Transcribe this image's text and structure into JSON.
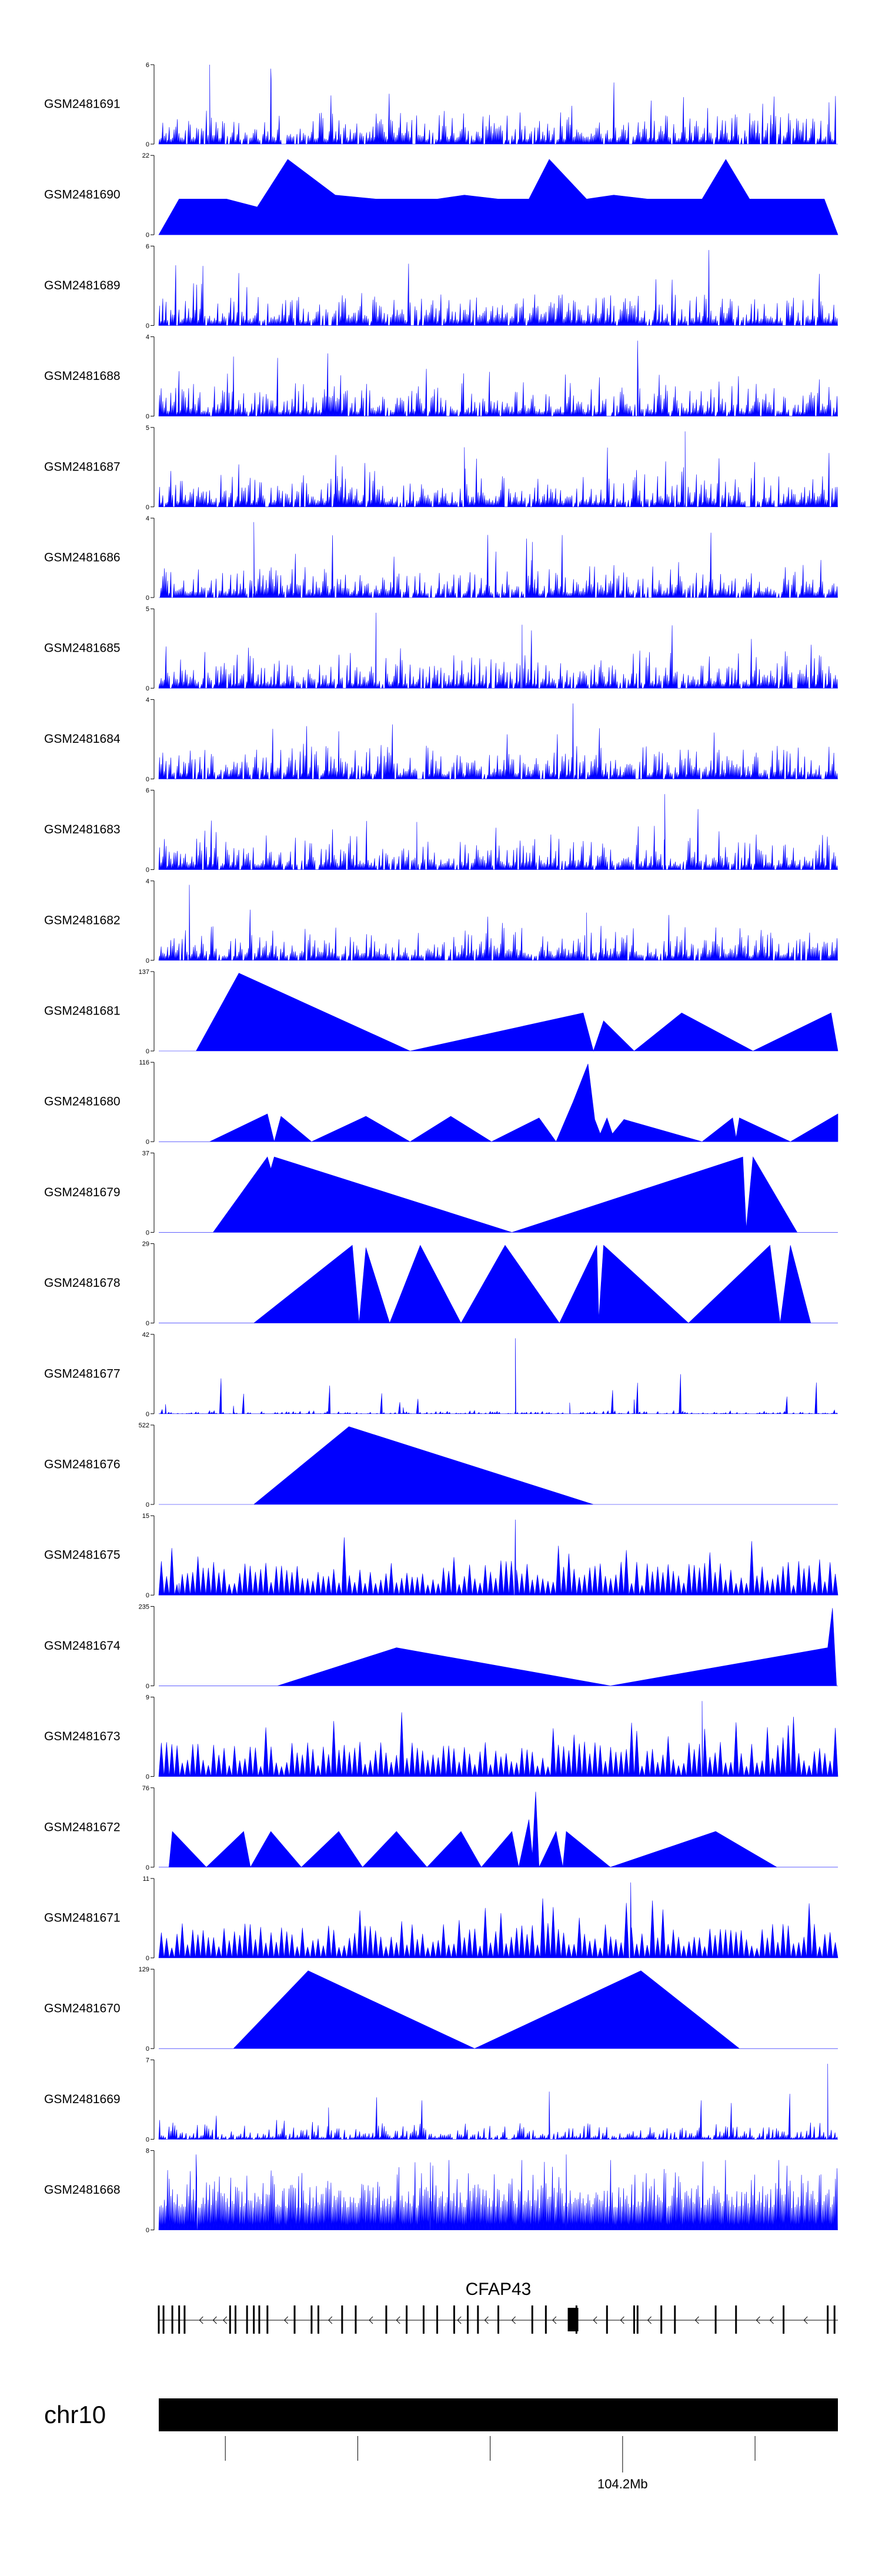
{
  "chart_data": {
    "type": "area",
    "color": "#0000ff",
    "axis_color": "#000000",
    "tracks": [
      {
        "name": "GSM2481691",
        "ymax": "6",
        "ymin": "0",
        "style": "dense",
        "seed": 11,
        "spikes": [
          [
            0.075,
            1.0
          ],
          [
            0.165,
            0.95
          ],
          [
            0.985,
            0.25
          ]
        ]
      },
      {
        "name": "GSM2481690",
        "ymax": "22",
        "ymin": "0",
        "style": "triangles",
        "seed": 12,
        "peaks": [
          [
            0.03,
            0.45
          ],
          [
            0.062,
            0.45
          ],
          [
            0.1,
            0.45
          ],
          [
            0.145,
            0.35
          ],
          [
            0.19,
            0.95
          ],
          [
            0.26,
            0.5
          ],
          [
            0.32,
            0.45
          ],
          [
            0.37,
            0.45
          ],
          [
            0.41,
            0.45
          ],
          [
            0.45,
            0.5
          ],
          [
            0.5,
            0.45
          ],
          [
            0.545,
            0.45
          ],
          [
            0.575,
            0.95
          ],
          [
            0.63,
            0.45
          ],
          [
            0.67,
            0.5
          ],
          [
            0.72,
            0.45
          ],
          [
            0.76,
            0.45
          ],
          [
            0.8,
            0.45
          ],
          [
            0.835,
            0.95
          ],
          [
            0.87,
            0.45
          ],
          [
            0.905,
            0.45
          ],
          [
            0.945,
            0.45
          ],
          [
            0.98,
            0.45
          ]
        ]
      },
      {
        "name": "GSM2481689",
        "ymax": "6",
        "ymin": "0",
        "style": "dense",
        "seed": 13,
        "spikes": [
          [
            0.81,
            0.95
          ],
          [
            0.065,
            0.75
          ]
        ]
      },
      {
        "name": "GSM2481688",
        "ymax": "4",
        "ymin": "0",
        "style": "dense",
        "seed": 14,
        "spikes": [
          [
            0.705,
            0.95
          ],
          [
            0.11,
            0.75
          ]
        ]
      },
      {
        "name": "GSM2481687",
        "ymax": "5",
        "ymin": "0",
        "style": "dense",
        "seed": 15,
        "spikes": [
          [
            0.775,
            0.95
          ],
          [
            0.45,
            0.75
          ]
        ]
      },
      {
        "name": "GSM2481686",
        "ymax": "4",
        "ymin": "0",
        "style": "dense",
        "seed": 16,
        "spikes": [
          [
            0.14,
            0.95
          ],
          [
            0.55,
            0.7
          ]
        ]
      },
      {
        "name": "GSM2481685",
        "ymax": "5",
        "ymin": "0",
        "style": "dense",
        "seed": 17,
        "spikes": [
          [
            0.32,
            0.95
          ],
          [
            0.535,
            0.8
          ]
        ]
      },
      {
        "name": "GSM2481684",
        "ymax": "4",
        "ymin": "0",
        "style": "dense",
        "seed": 18,
        "spikes": [
          [
            0.61,
            0.95
          ],
          [
            0.265,
            0.6
          ]
        ]
      },
      {
        "name": "GSM2481683",
        "ymax": "6",
        "ymin": "0",
        "style": "dense",
        "seed": 19,
        "spikes": [
          [
            0.745,
            0.95
          ],
          [
            0.38,
            0.6
          ]
        ]
      },
      {
        "name": "GSM2481682",
        "ymax": "4",
        "ymin": "0",
        "style": "dense",
        "seed": 20,
        "spikes": [
          [
            0.045,
            0.95
          ],
          [
            0.63,
            0.6
          ]
        ]
      },
      {
        "name": "GSM2481681",
        "ymax": "137",
        "ymin": "0",
        "style": "triangles",
        "seed": 21,
        "peaks": [
          [
            0.055,
            0.0
          ],
          [
            0.118,
            0.98
          ],
          [
            0.37,
            0.0
          ],
          [
            0.625,
            0.48
          ],
          [
            0.64,
            0.0
          ],
          [
            0.655,
            0.38
          ],
          [
            0.7,
            0.0
          ],
          [
            0.77,
            0.48
          ],
          [
            0.875,
            0.0
          ],
          [
            0.99,
            0.48
          ]
        ]
      },
      {
        "name": "GSM2481680",
        "ymax": "116",
        "ymin": "0",
        "style": "triangles",
        "seed": 22,
        "peaks": [
          [
            0.075,
            0.0
          ],
          [
            0.16,
            0.35
          ],
          [
            0.17,
            0.0
          ],
          [
            0.18,
            0.32
          ],
          [
            0.225,
            0.0
          ],
          [
            0.305,
            0.32
          ],
          [
            0.37,
            0.0
          ],
          [
            0.43,
            0.32
          ],
          [
            0.49,
            0.0
          ],
          [
            0.56,
            0.3
          ],
          [
            0.585,
            0.0
          ],
          [
            0.61,
            0.5
          ],
          [
            0.632,
            0.98
          ],
          [
            0.642,
            0.28
          ],
          [
            0.65,
            0.1
          ],
          [
            0.66,
            0.3
          ],
          [
            0.668,
            0.1
          ],
          [
            0.685,
            0.28
          ],
          [
            0.8,
            0.0
          ],
          [
            0.845,
            0.3
          ],
          [
            0.85,
            0.05
          ],
          [
            0.855,
            0.3
          ],
          [
            0.93,
            0.0
          ],
          [
            1.0,
            0.35
          ]
        ]
      },
      {
        "name": "GSM2481679",
        "ymax": "37",
        "ymin": "0",
        "style": "triangles",
        "seed": 23,
        "peaks": [
          [
            0.08,
            0.0
          ],
          [
            0.16,
            0.95
          ],
          [
            0.165,
            0.8
          ],
          [
            0.17,
            0.95
          ],
          [
            0.52,
            0.0
          ],
          [
            0.86,
            0.95
          ],
          [
            0.865,
            0.05
          ],
          [
            0.875,
            0.95
          ],
          [
            0.94,
            0.0
          ]
        ]
      },
      {
        "name": "GSM2481678",
        "ymax": "29",
        "ymin": "0",
        "style": "triangles",
        "seed": 24,
        "peaks": [
          [
            0.14,
            0.0
          ],
          [
            0.285,
            0.98
          ],
          [
            0.295,
            0.0
          ],
          [
            0.305,
            0.95
          ],
          [
            0.34,
            0.0
          ],
          [
            0.385,
            0.98
          ],
          [
            0.445,
            0.0
          ],
          [
            0.51,
            0.98
          ],
          [
            0.59,
            0.0
          ],
          [
            0.645,
            0.98
          ],
          [
            0.648,
            0.05
          ],
          [
            0.655,
            0.98
          ],
          [
            0.78,
            0.0
          ],
          [
            0.9,
            0.98
          ],
          [
            0.915,
            0.0
          ],
          [
            0.93,
            0.98
          ],
          [
            0.96,
            0.0
          ]
        ]
      },
      {
        "name": "GSM2481677",
        "ymax": "42",
        "ymin": "0",
        "style": "sparse",
        "seed": 25,
        "spikes": [
          [
            0.525,
            0.95
          ],
          [
            0.7,
            0.18
          ],
          [
            0.605,
            0.14
          ],
          [
            0.11,
            0.1
          ],
          [
            0.36,
            0.08
          ],
          [
            0.01,
            0.12
          ]
        ]
      },
      {
        "name": "GSM2481676",
        "ymax": "522",
        "ymin": "0",
        "style": "triangles",
        "seed": 26,
        "peaks": [
          [
            0.14,
            0.0
          ],
          [
            0.28,
            0.98
          ],
          [
            0.64,
            0.0
          ]
        ]
      },
      {
        "name": "GSM2481675",
        "ymax": "15",
        "ymin": "0",
        "style": "triangles_dense",
        "seed": 27,
        "spikes": [
          [
            0.525,
            0.95
          ],
          [
            0.03,
            0.15
          ]
        ]
      },
      {
        "name": "GSM2481674",
        "ymax": "235",
        "ymin": "0",
        "style": "triangles",
        "seed": 28,
        "peaks": [
          [
            0.175,
            0.0
          ],
          [
            0.35,
            0.48
          ],
          [
            0.665,
            0.0
          ],
          [
            0.985,
            0.48
          ],
          [
            0.992,
            0.98
          ],
          [
            0.998,
            0.0
          ]
        ]
      },
      {
        "name": "GSM2481673",
        "ymax": "9",
        "ymin": "0",
        "style": "triangles_dense",
        "seed": 29,
        "spikes": [
          [
            0.8,
            0.95
          ]
        ]
      },
      {
        "name": "GSM2481672",
        "ymax": "76",
        "ymin": "0",
        "style": "triangles",
        "seed": 30,
        "peaks": [
          [
            0.015,
            0.0
          ],
          [
            0.02,
            0.45
          ],
          [
            0.07,
            0.0
          ],
          [
            0.125,
            0.45
          ],
          [
            0.135,
            0.0
          ],
          [
            0.165,
            0.45
          ],
          [
            0.21,
            0.0
          ],
          [
            0.265,
            0.45
          ],
          [
            0.3,
            0.0
          ],
          [
            0.35,
            0.45
          ],
          [
            0.395,
            0.0
          ],
          [
            0.445,
            0.45
          ],
          [
            0.475,
            0.0
          ],
          [
            0.52,
            0.45
          ],
          [
            0.53,
            0.0
          ],
          [
            0.545,
            0.6
          ],
          [
            0.55,
            0.15
          ],
          [
            0.555,
            0.95
          ],
          [
            0.56,
            0.0
          ],
          [
            0.585,
            0.45
          ],
          [
            0.595,
            0.0
          ],
          [
            0.6,
            0.45
          ],
          [
            0.665,
            0.0
          ],
          [
            0.82,
            0.45
          ],
          [
            0.91,
            0.0
          ]
        ]
      },
      {
        "name": "GSM2481671",
        "ymax": "11",
        "ymin": "0",
        "style": "triangles_dense",
        "seed": 31,
        "spikes": [
          [
            0.695,
            0.95
          ]
        ]
      },
      {
        "name": "GSM2481670",
        "ymax": "129",
        "ymin": "0",
        "style": "triangles",
        "seed": 32,
        "peaks": [
          [
            0.11,
            0.0
          ],
          [
            0.22,
            0.98
          ],
          [
            0.465,
            0.0
          ],
          [
            0.71,
            0.98
          ],
          [
            0.855,
            0.0
          ]
        ]
      },
      {
        "name": "GSM2481669",
        "ymax": "7",
        "ymin": "0",
        "style": "sparse_dense",
        "seed": 33,
        "spikes": [
          [
            0.985,
            0.95
          ],
          [
            0.575,
            0.6
          ],
          [
            0.25,
            0.4
          ]
        ]
      },
      {
        "name": "GSM2481668",
        "ymax": "8",
        "ymin": "0",
        "style": "full",
        "seed": 34,
        "spikes": [
          [
            0.055,
            0.95
          ],
          [
            0.6,
            0.95
          ],
          [
            0.4,
            0.85
          ]
        ]
      }
    ],
    "gene": {
      "name": "CFAP43",
      "strand": "-",
      "exons": [
        0.0,
        0.007,
        0.02,
        0.03,
        0.038,
        0.105,
        0.113,
        0.13,
        0.14,
        0.148,
        0.16,
        0.2,
        0.225,
        0.235,
        0.27,
        0.29,
        0.335,
        0.365,
        0.39,
        0.41,
        0.435,
        0.455,
        0.47,
        0.5,
        0.55,
        0.57,
        0.615,
        0.66,
        0.7,
        0.705,
        0.74,
        0.76,
        0.82,
        0.85,
        0.92,
        0.985,
        0.995
      ],
      "big_exon": 0.61,
      "arrows": [
        0.06,
        0.08,
        0.095,
        0.185,
        0.25,
        0.31,
        0.35,
        0.44,
        0.48,
        0.52,
        0.58,
        0.64,
        0.68,
        0.72,
        0.79,
        0.88,
        0.9,
        0.95
      ]
    },
    "chromosome": {
      "name": "chr10",
      "ticks": [
        0.098,
        0.293,
        0.488,
        0.683,
        0.878
      ],
      "labeled_tick": 3,
      "labeled_tick_text": "104.2Mb"
    }
  }
}
